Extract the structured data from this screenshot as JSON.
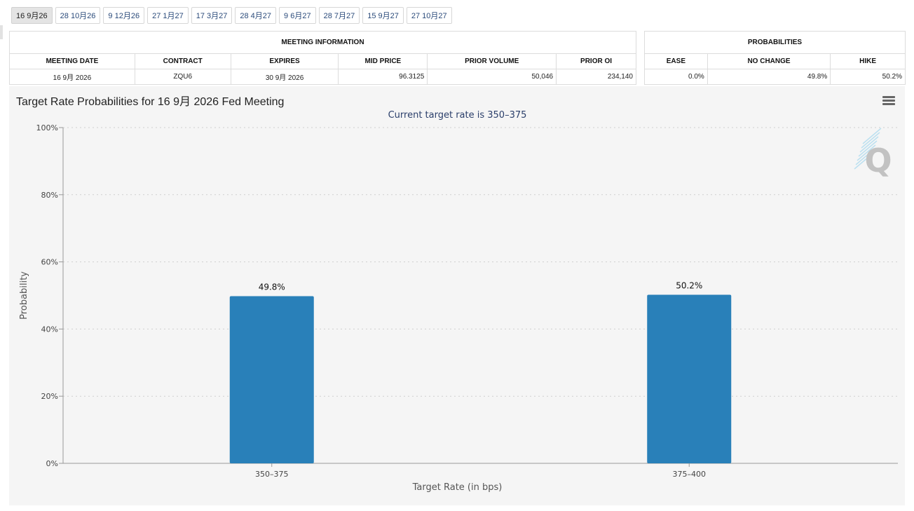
{
  "tabs": [
    "16 9月26",
    "28 10月26",
    "9 12月26",
    "27 1月27",
    "17 3月27",
    "28 4月27",
    "9 6月27",
    "28 7月27",
    "15 9月27",
    "27 10月27"
  ],
  "meeting_info": {
    "group_title": "MEETING INFORMATION",
    "headers": [
      "MEETING DATE",
      "CONTRACT",
      "EXPIRES",
      "MID PRICE",
      "PRIOR VOLUME",
      "PRIOR OI"
    ],
    "row": [
      "16 9月 2026",
      "ZQU6",
      "30 9月 2026",
      "96.3125",
      "50,046",
      "234,140"
    ]
  },
  "probabilities": {
    "group_title": "PROBABILITIES",
    "headers": [
      "EASE",
      "NO CHANGE",
      "HIKE"
    ],
    "row": [
      "0.0%",
      "49.8%",
      "50.2%"
    ]
  },
  "chart_title": "Target Rate Probabilities for 16 9月 2026 Fed Meeting",
  "chart_data": {
    "type": "bar",
    "title": "Target Rate Probabilities for 16 9月 2026 Fed Meeting",
    "subtitle": "Current target rate is 350–375",
    "xlabel": "Target Rate (in bps)",
    "ylabel": "Probability",
    "categories": [
      "350–375",
      "375–400"
    ],
    "values": [
      49.8,
      50.2
    ],
    "data_labels": [
      "49.8%",
      "50.2%"
    ],
    "ylim": [
      0,
      100
    ],
    "yticks": [
      "0%",
      "20%",
      "40%",
      "60%",
      "80%",
      "100%"
    ],
    "grid": true,
    "bar_color": "#2980b9"
  }
}
